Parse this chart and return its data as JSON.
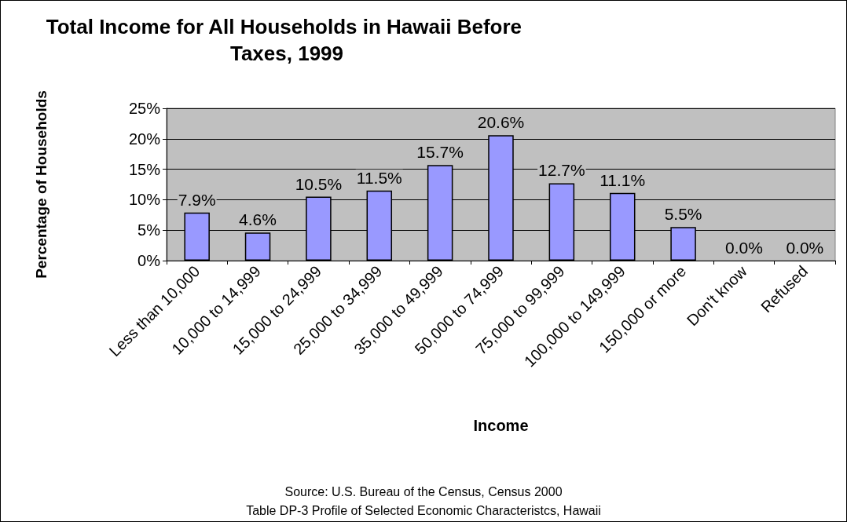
{
  "chart_data": {
    "type": "bar",
    "title": "Total Income for All Households in Hawaii Before Taxes, 1999",
    "xlabel": "Income",
    "ylabel": "Percentage of Households",
    "categories": [
      "Less than 10,000",
      "10,000 to 14,999",
      "15,000 to 24,999",
      "25,000 to 34,999",
      "35,000 to 49,999",
      "50,000 to 74,999",
      "75,000 to 99,999",
      "100,000 to 149,999",
      "150,000 or more",
      "Don't know",
      "Refused"
    ],
    "values": [
      7.9,
      4.6,
      10.5,
      11.5,
      15.7,
      20.6,
      12.7,
      11.1,
      5.5,
      0,
      0
    ],
    "value_labels": [
      "7.9%",
      "4.6%",
      "10.5%",
      "11.5%",
      "15.7%",
      "20.6%",
      "12.7%",
      "11.1%",
      "5.5%",
      "0.0%",
      "0.0%"
    ],
    "color": "#9999ff",
    "ylim": [
      0,
      25
    ],
    "yticks": [
      {
        "value": 0,
        "label": "0%"
      },
      {
        "value": 5,
        "label": "5%"
      },
      {
        "value": 10,
        "label": "10%"
      },
      {
        "value": 15,
        "label": "15%"
      },
      {
        "value": 20,
        "label": "20%"
      },
      {
        "value": 25,
        "label": "25%"
      }
    ],
    "grid": "y",
    "annotations": [
      "Source: U.S. Bureau of the Census, Census 2000",
      "Table DP-3 Profile of Selected Economic Characteristcs, Hawaii"
    ]
  }
}
